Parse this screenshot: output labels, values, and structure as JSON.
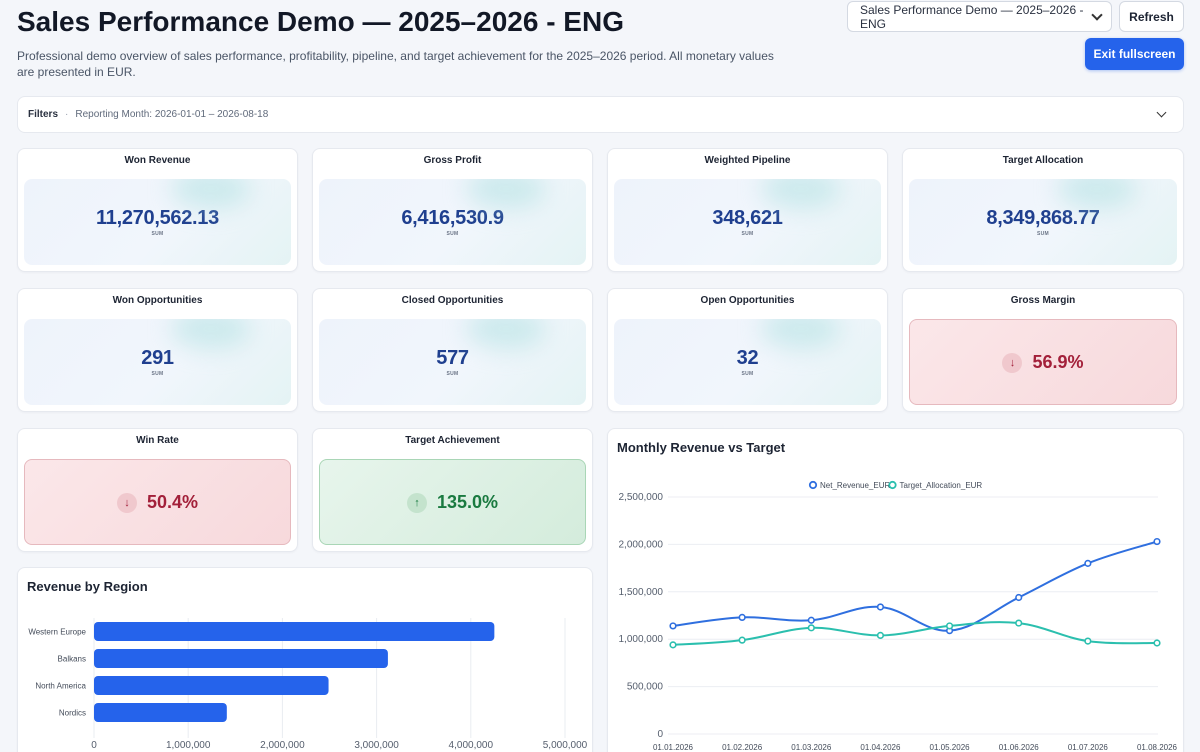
{
  "header": {
    "title": "Sales Performance Demo — 2025–2026 - ENG",
    "subtitle": "Professional demo overview of sales performance, profitability, pipeline, and target achievement for the 2025–2026 period. All monetary values are presented in EUR.",
    "dashboard_select_value": "Sales Performance Demo — 2025–2026 - ENG",
    "refresh_label": "Refresh",
    "exit_fullscreen_label": "Exit fullscreen"
  },
  "filters": {
    "label": "Filters",
    "separator": "·",
    "summary": "Reporting Month: 2026-01-01 – 2026-08-18"
  },
  "kpis": [
    {
      "title": "Won Revenue",
      "value": "11,270,562.13",
      "sub": "SUM"
    },
    {
      "title": "Gross Profit",
      "value": "6,416,530.9",
      "sub": "SUM"
    },
    {
      "title": "Weighted Pipeline",
      "value": "348,621",
      "sub": "SUM"
    },
    {
      "title": "Target Allocation",
      "value": "8,349,868.77",
      "sub": "SUM"
    },
    {
      "title": "Won Opportunities",
      "value": "291",
      "sub": "SUM"
    },
    {
      "title": "Closed Opportunities",
      "value": "577",
      "sub": "SUM"
    },
    {
      "title": "Open Opportunities",
      "value": "32",
      "sub": "SUM"
    },
    {
      "title": "Gross Margin",
      "value": "56.9%",
      "arrow": "↓"
    },
    {
      "title": "Win Rate",
      "value": "50.4%",
      "arrow": "↓"
    },
    {
      "title": "Target Achievement",
      "value": "135.0%",
      "arrow": "↑"
    }
  ],
  "colors": {
    "accent": "#2563eb",
    "bar": "#2563eb",
    "net_revenue_line": "#2f6fdf",
    "target_line": "#2bbfae",
    "negative": "#a3203a",
    "positive": "#1a7a40"
  },
  "chart_data": [
    {
      "type": "bar",
      "title": "Revenue by Region",
      "orientation": "horizontal",
      "categories": [
        "Western Europe",
        "Balkans",
        "North America",
        "Nordics"
      ],
      "values": [
        4250000,
        3120000,
        2490000,
        1410000
      ],
      "xlim": [
        0,
        5000000
      ],
      "xticks": [
        "0",
        "1,000,000",
        "2,000,000",
        "3,000,000",
        "4,000,000",
        "5,000,000"
      ],
      "grid": true
    },
    {
      "type": "line",
      "title": "Monthly Revenue vs Target",
      "x": [
        "01.01.2026",
        "01.02.2026",
        "01.03.2026",
        "01.04.2026",
        "01.05.2026",
        "01.06.2026",
        "01.07.2026",
        "01.08.2026"
      ],
      "series": [
        {
          "name": "Net_Revenue_EUR",
          "values": [
            1140000,
            1230000,
            1200000,
            1340000,
            1090000,
            1440000,
            1800000,
            2030000
          ]
        },
        {
          "name": "Target_Allocation_EUR",
          "values": [
            940000,
            990000,
            1120000,
            1040000,
            1140000,
            1170000,
            980000,
            960000
          ]
        }
      ],
      "ylim": [
        0,
        2500000
      ],
      "yticks": [
        "0",
        "500,000",
        "1,000,000",
        "1,500,000",
        "2,000,000",
        "2,500,000"
      ],
      "legend": "top-center",
      "smooth": true,
      "grid": true
    }
  ]
}
